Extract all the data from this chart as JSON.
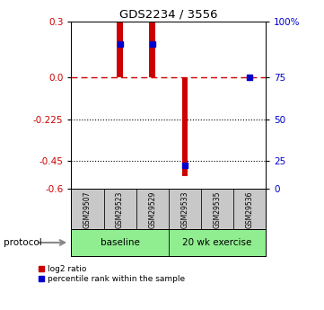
{
  "title": "GDS2234 / 3556",
  "samples": [
    "GSM29507",
    "GSM29523",
    "GSM29529",
    "GSM29533",
    "GSM29535",
    "GSM29536"
  ],
  "log2_ratio": [
    0.0,
    0.3,
    0.3,
    -0.53,
    0.0,
    0.0
  ],
  "blue_left_y": {
    "1": 0.18,
    "2": 0.18,
    "3": -0.47,
    "5": 0.0
  },
  "ylim": [
    -0.6,
    0.3
  ],
  "yticks_left": [
    0.3,
    0.0,
    -0.225,
    -0.45,
    -0.6
  ],
  "yticks_right": [
    100,
    75,
    50,
    25,
    0
  ],
  "bar_color": "#CC0000",
  "blue_color": "#0000CC",
  "baseline_fill": "#90EE90",
  "exercise_fill": "#90EE90",
  "sample_box_fill": "#C8C8C8",
  "legend_red_label": "log2 ratio",
  "legend_blue_label": "percentile rank within the sample",
  "protocol_label": "protocol",
  "n_baseline": 3,
  "n_exercise": 3,
  "bar_width": 0.18
}
